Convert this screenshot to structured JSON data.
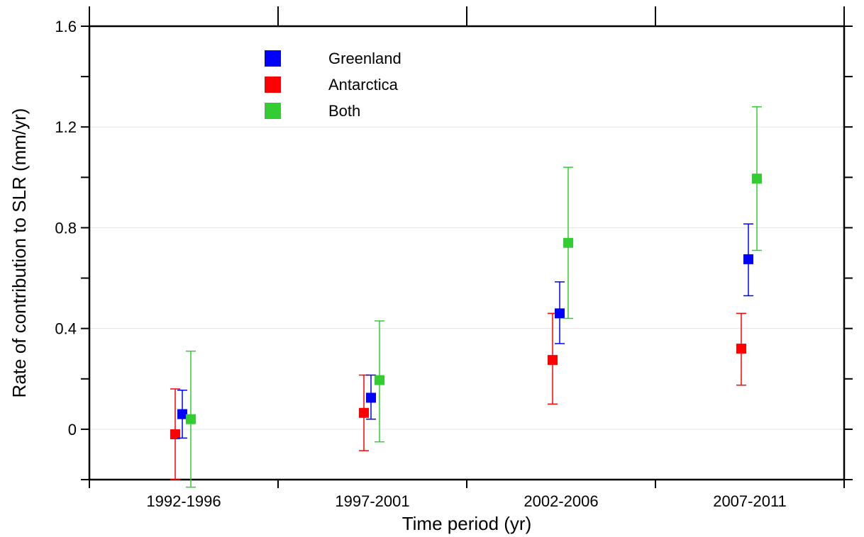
{
  "chart_data": {
    "type": "scatter",
    "xlabel": "Time period (yr)",
    "ylabel": "Rate of contribution to SLR (mm/yr)",
    "categories": [
      "1992-1996",
      "1997-2001",
      "2002-2006",
      "2007-2011"
    ],
    "ylim": [
      -0.2,
      1.6
    ],
    "yticks": [
      0,
      0.4,
      0.8,
      1.2,
      1.6
    ],
    "ytick_labels": [
      "0",
      "0.4",
      "0.8",
      "1.2",
      "1.6"
    ],
    "grid": true,
    "legend_position": "top-left",
    "series": [
      {
        "name": "Greenland",
        "color": "#0000ff",
        "values": [
          0.06,
          0.125,
          0.46,
          0.675
        ],
        "err_low": [
          -0.035,
          0.04,
          0.34,
          0.53
        ],
        "err_high": [
          0.155,
          0.215,
          0.585,
          0.815
        ]
      },
      {
        "name": "Antarctica",
        "color": "#ff0000",
        "values": [
          -0.02,
          0.065,
          0.275,
          0.32
        ],
        "err_low": [
          -0.2,
          -0.085,
          0.1,
          0.175
        ],
        "err_high": [
          0.16,
          0.215,
          0.46,
          0.46
        ]
      },
      {
        "name": "Both",
        "color": "#33cc33",
        "values": [
          0.04,
          0.195,
          0.74,
          0.995
        ],
        "err_low": [
          -0.23,
          -0.05,
          0.44,
          0.71
        ],
        "err_high": [
          0.31,
          0.43,
          1.04,
          1.28
        ]
      }
    ]
  }
}
